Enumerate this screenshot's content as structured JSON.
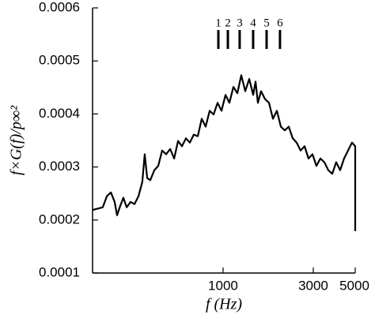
{
  "chart_data": {
    "type": "line",
    "xlabel": "f (Hz)",
    "ylabel": "f×G(f)/p∞²",
    "x": [
      204,
      220,
      231,
      243,
      255,
      267,
      275,
      286,
      297,
      309,
      324,
      340,
      357,
      374,
      385,
      397,
      412,
      433,
      454,
      476,
      500,
      525,
      551,
      578,
      606,
      636,
      667,
      700,
      735,
      771,
      809,
      849,
      891,
      935,
      981,
      1030,
      1080,
      1134,
      1190,
      1248,
      1310,
      1375,
      1443,
      1485,
      1528,
      1588,
      1667,
      1749,
      1835,
      1926,
      2021,
      2120,
      2225,
      2335,
      2450,
      2571,
      2698,
      2831,
      2971,
      3117,
      3271,
      3432,
      3601,
      3779,
      3965,
      4161,
      4366,
      4582,
      4808,
      5000,
      5000
    ],
    "values": [
      0.000219,
      0.000222,
      0.000224,
      0.000245,
      0.000252,
      0.000234,
      0.000209,
      0.000227,
      0.000242,
      0.000224,
      0.000234,
      0.00023,
      0.000245,
      0.000272,
      0.000324,
      0.000279,
      0.000275,
      0.000294,
      0.000302,
      0.000331,
      0.000324,
      0.000334,
      0.000316,
      0.000349,
      0.000339,
      0.000354,
      0.000346,
      0.000361,
      0.000358,
      0.000391,
      0.000376,
      0.000406,
      0.000399,
      0.000421,
      0.000406,
      0.000436,
      0.000421,
      0.000451,
      0.000439,
      0.000473,
      0.000443,
      0.000466,
      0.000436,
      0.000461,
      0.000421,
      0.000443,
      0.000428,
      0.000421,
      0.000391,
      0.000406,
      0.000376,
      0.000369,
      0.000376,
      0.000354,
      0.000346,
      0.000331,
      0.000339,
      0.000316,
      0.000324,
      0.000302,
      0.000316,
      0.000309,
      0.000294,
      0.000287,
      0.000309,
      0.000294,
      0.000316,
      0.000331,
      0.000346,
      0.000339,
      0.000179
    ],
    "color": "#000000",
    "xscale": "log",
    "xlim": [
      204,
      5000
    ],
    "xticks": [
      1000,
      3000,
      5000
    ],
    "ylim": [
      0.0001,
      0.0006
    ],
    "yticks": [
      0.0001,
      0.0002,
      0.0003,
      0.0004,
      0.0005,
      0.0006
    ],
    "annotations": [
      {
        "x": 944,
        "label": "1"
      },
      {
        "x": 1060,
        "label": "2"
      },
      {
        "x": 1224,
        "label": "3"
      },
      {
        "x": 1442,
        "label": "4"
      },
      {
        "x": 1699,
        "label": "5"
      },
      {
        "x": 2000,
        "label": "6"
      }
    ]
  }
}
